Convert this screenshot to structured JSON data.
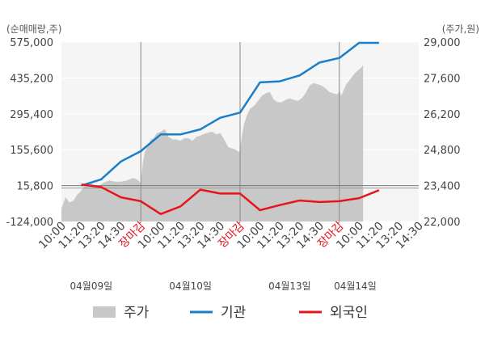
{
  "chart_data": {
    "type": "line",
    "left_axis_label": "(순매매량,주)",
    "right_axis_label": "(주가,원)",
    "left_ylim": [
      -124000,
      575000
    ],
    "right_ylim": [
      22000,
      29000
    ],
    "left_ticks": [
      "575,000",
      "435,200",
      "295,400",
      "155,600",
      "15,800",
      "-124,000"
    ],
    "right_ticks": [
      "29,000",
      "27,600",
      "26,200",
      "24,800",
      "23,400",
      "22,000"
    ],
    "x_tick_labels": [
      {
        "text": "10:00",
        "color": "#444444"
      },
      {
        "text": "11:20",
        "color": "#444444"
      },
      {
        "text": "13:20",
        "color": "#444444"
      },
      {
        "text": "14:30",
        "color": "#444444"
      },
      {
        "text": "장마감",
        "color": "#e8141b"
      },
      {
        "text": "10:00",
        "color": "#444444"
      },
      {
        "text": "11:20",
        "color": "#444444"
      },
      {
        "text": "13:20",
        "color": "#444444"
      },
      {
        "text": "14:30",
        "color": "#444444"
      },
      {
        "text": "장마감",
        "color": "#e8141b"
      },
      {
        "text": "10:00",
        "color": "#444444"
      },
      {
        "text": "11:20",
        "color": "#444444"
      },
      {
        "text": "13:20",
        "color": "#444444"
      },
      {
        "text": "14:30",
        "color": "#444444"
      },
      {
        "text": "장마감",
        "color": "#e8141b"
      },
      {
        "text": "10:00",
        "color": "#444444"
      },
      {
        "text": "11:20",
        "color": "#444444"
      },
      {
        "text": "13:20",
        "color": "#444444"
      },
      {
        "text": "14:30",
        "color": "#444444"
      }
    ],
    "date_labels": [
      {
        "text": "04월09일",
        "index": 1.5
      },
      {
        "text": "04월10일",
        "index": 6.5
      },
      {
        "text": "04월13일",
        "index": 11.5
      },
      {
        "text": "04월14일",
        "index": 14.8
      }
    ],
    "day_separators": [
      4,
      9,
      14
    ],
    "x_total_slots": 18,
    "reference_value": 15800,
    "series": [
      {
        "name": "기관",
        "color": "#1a7ec8",
        "axis": "left",
        "x": [
          1,
          2,
          3,
          4,
          5,
          6,
          7,
          8,
          9,
          10,
          11,
          12,
          13,
          14,
          15,
          16
        ],
        "values": [
          15800,
          40000,
          110000,
          150000,
          215000,
          215000,
          235000,
          280000,
          300000,
          418000,
          422000,
          445000,
          495000,
          513000,
          572000,
          572000
        ]
      },
      {
        "name": "외국인",
        "color": "#e8141b",
        "axis": "left",
        "x": [
          1,
          2,
          3,
          4,
          5,
          6,
          7,
          8,
          9,
          10,
          11,
          12,
          13,
          14,
          15,
          16
        ],
        "values": [
          20000,
          10000,
          -30000,
          -45000,
          -95000,
          -65000,
          0,
          -15000,
          -15000,
          -80000,
          -60000,
          -42000,
          -48000,
          -45000,
          -33000,
          -2000
        ]
      }
    ],
    "price_series": {
      "name": "주가",
      "color": "#c8c8c8",
      "axis": "right",
      "points": [
        [
          0,
          22500
        ],
        [
          0.2,
          22950
        ],
        [
          0.4,
          22750
        ],
        [
          0.6,
          22800
        ],
        [
          0.8,
          23050
        ],
        [
          1.0,
          23200
        ],
        [
          1.2,
          23450
        ],
        [
          1.5,
          23500
        ],
        [
          1.8,
          23350
        ],
        [
          2.1,
          23500
        ],
        [
          2.4,
          23600
        ],
        [
          2.7,
          23550
        ],
        [
          3.0,
          23550
        ],
        [
          3.3,
          23600
        ],
        [
          3.6,
          23700
        ],
        [
          3.8,
          23650
        ],
        [
          4.0,
          23500
        ],
        [
          4.1,
          24300
        ],
        [
          4.2,
          24700
        ],
        [
          4.35,
          24950
        ],
        [
          4.5,
          25200
        ],
        [
          4.65,
          25250
        ],
        [
          4.8,
          25450
        ],
        [
          5.0,
          25500
        ],
        [
          5.2,
          25600
        ],
        [
          5.4,
          25300
        ],
        [
          5.6,
          25200
        ],
        [
          5.8,
          25200
        ],
        [
          6.0,
          25150
        ],
        [
          6.2,
          25250
        ],
        [
          6.4,
          25250
        ],
        [
          6.6,
          25150
        ],
        [
          6.8,
          25300
        ],
        [
          7.0,
          25350
        ],
        [
          7.3,
          25450
        ],
        [
          7.6,
          25500
        ],
        [
          7.8,
          25400
        ],
        [
          8.0,
          25450
        ],
        [
          8.2,
          25200
        ],
        [
          8.4,
          24900
        ],
        [
          8.6,
          24850
        ],
        [
          8.8,
          24800
        ],
        [
          8.95,
          24700
        ],
        [
          9.0,
          24850
        ],
        [
          9.1,
          25400
        ],
        [
          9.2,
          25800
        ],
        [
          9.35,
          26150
        ],
        [
          9.5,
          26400
        ],
        [
          9.7,
          26500
        ],
        [
          9.9,
          26700
        ],
        [
          10.1,
          26900
        ],
        [
          10.3,
          27000
        ],
        [
          10.5,
          27050
        ],
        [
          10.7,
          26750
        ],
        [
          10.9,
          26650
        ],
        [
          11.1,
          26650
        ],
        [
          11.3,
          26750
        ],
        [
          11.5,
          26800
        ],
        [
          11.7,
          26750
        ],
        [
          11.9,
          26700
        ],
        [
          12.1,
          26800
        ],
        [
          12.3,
          27000
        ],
        [
          12.5,
          27300
        ],
        [
          12.7,
          27400
        ],
        [
          12.9,
          27350
        ],
        [
          13.1,
          27300
        ],
        [
          13.3,
          27200
        ],
        [
          13.5,
          27050
        ],
        [
          13.7,
          27000
        ],
        [
          13.9,
          26950
        ],
        [
          14.0,
          27100
        ],
        [
          14.1,
          26900
        ],
        [
          14.2,
          27100
        ],
        [
          14.35,
          27350
        ],
        [
          14.5,
          27500
        ],
        [
          14.65,
          27650
        ],
        [
          14.8,
          27800
        ],
        [
          14.95,
          27900
        ],
        [
          15.1,
          28000
        ],
        [
          15.2,
          28100
        ]
      ]
    },
    "legend": [
      {
        "name": "주가",
        "color": "#c8c8c8",
        "kind": "area"
      },
      {
        "name": "기관",
        "color": "#1a7ec8",
        "kind": "line"
      },
      {
        "name": "외국인",
        "color": "#e8141b",
        "kind": "line"
      }
    ],
    "grid": true,
    "legend_position": "bottom"
  }
}
